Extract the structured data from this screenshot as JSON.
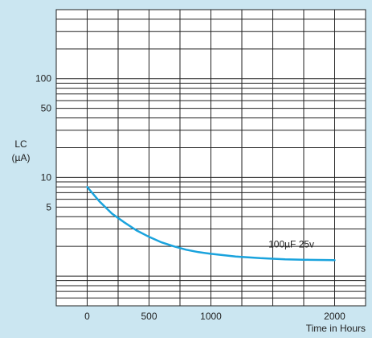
{
  "chart_data": {
    "type": "line",
    "title": "",
    "ylabel": "LC",
    "ylabel_unit": "(µA)",
    "xlabel": "Time in Hours",
    "xlim": [
      -250,
      2250
    ],
    "x_ticks": [
      0,
      500,
      1000,
      2000
    ],
    "x_tick_labels": [
      "0",
      "500",
      "1000",
      "2000"
    ],
    "y_scale": "log",
    "ylim": [
      0.5,
      500
    ],
    "y_ticks": [
      5,
      10,
      50,
      100
    ],
    "y_tick_labels": [
      "5",
      "10",
      "50",
      "100"
    ],
    "grid": true,
    "series": [
      {
        "name": "100µF 25v",
        "color": "#1aa3dd",
        "x": [
          0,
          100,
          200,
          300,
          400,
          500,
          600,
          700,
          800,
          900,
          1000,
          1200,
          1400,
          1600,
          1800,
          2000
        ],
        "y": [
          8.0,
          5.7,
          4.3,
          3.5,
          2.9,
          2.5,
          2.2,
          2.0,
          1.85,
          1.75,
          1.68,
          1.58,
          1.52,
          1.48,
          1.46,
          1.45
        ]
      }
    ]
  }
}
